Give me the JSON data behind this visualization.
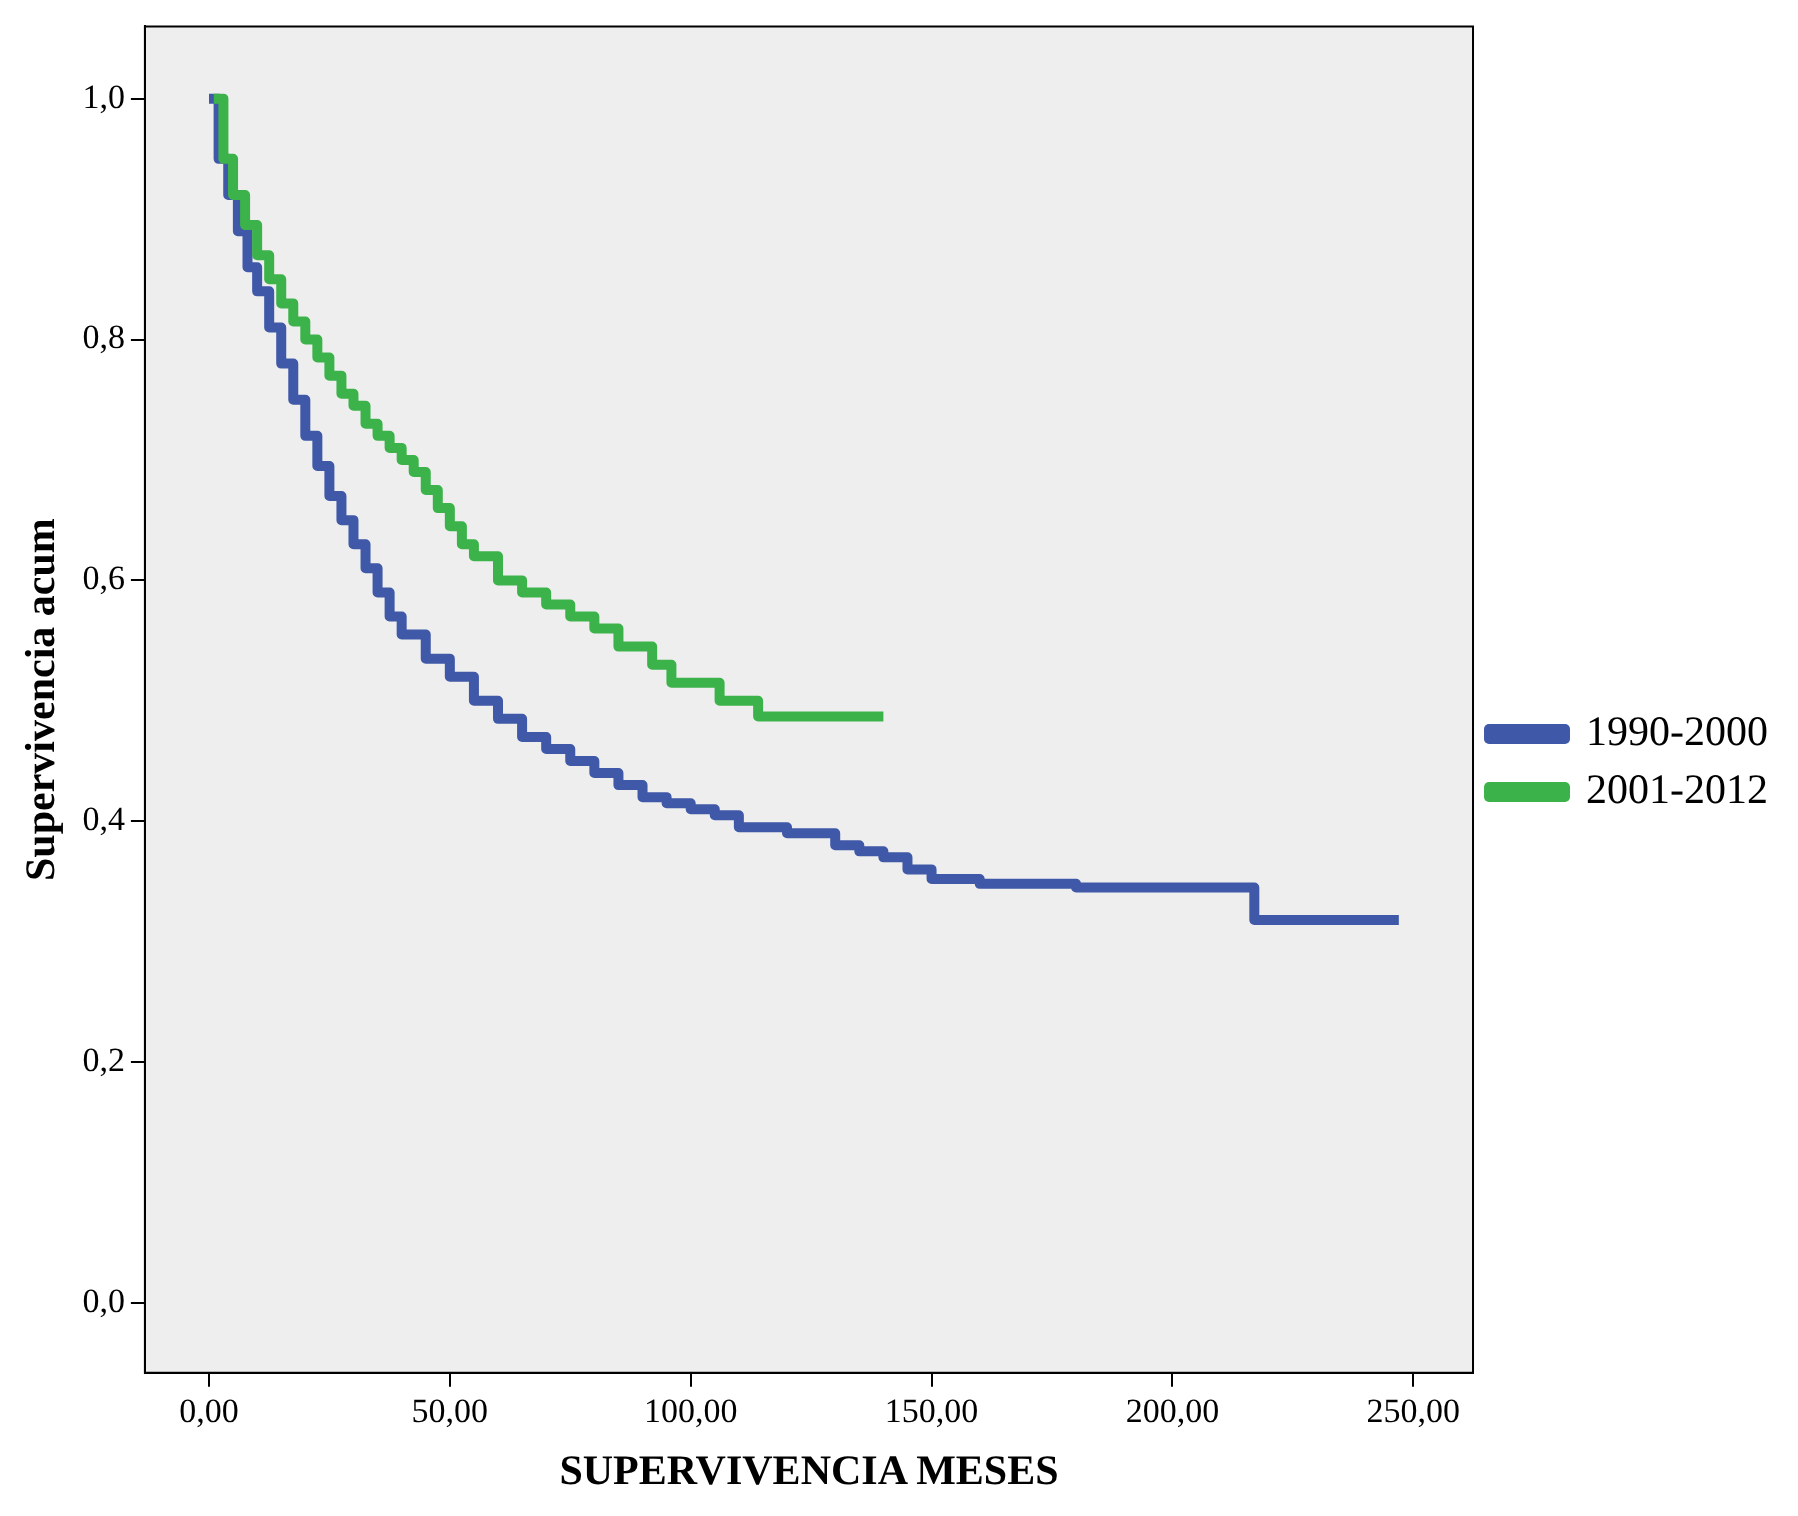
{
  "chart_data": {
    "type": "step",
    "xlabel": "SUPERVIVENCIA MESES",
    "ylabel": "Supervivencia acum",
    "xlim": [
      -13.3,
      262.4
    ],
    "ylim": [
      -0.058,
      1.06
    ],
    "xticks": [
      {
        "value": 0,
        "label": "0,00"
      },
      {
        "value": 50,
        "label": "50,00"
      },
      {
        "value": 100,
        "label": "100,00"
      },
      {
        "value": 150,
        "label": "150,00"
      },
      {
        "value": 200,
        "label": "200,00"
      },
      {
        "value": 250,
        "label": "250,00"
      }
    ],
    "yticks": [
      {
        "value": 0,
        "label": "0,0"
      },
      {
        "value": 0.2,
        "label": "0,2"
      },
      {
        "value": 0.4,
        "label": "0,4"
      },
      {
        "value": 0.6,
        "label": "0,6"
      },
      {
        "value": 0.8,
        "label": "0,8"
      },
      {
        "value": 1,
        "label": "1,0"
      }
    ],
    "grid": false,
    "legend": "right",
    "marker": "none",
    "line_style": "solid",
    "series": [
      {
        "name": "1990-2000",
        "color": "#3f58a8",
        "x": [
          0,
          2,
          4,
          6,
          8,
          10,
          12.5,
          15,
          17.5,
          20,
          22.5,
          25,
          27.5,
          30,
          32.5,
          35,
          37.5,
          40,
          45,
          50,
          55,
          60,
          65,
          70,
          75,
          80,
          85,
          90,
          95,
          100,
          105,
          110,
          120,
          130,
          135,
          140,
          145,
          150,
          160,
          180,
          217,
          247
        ],
        "values": [
          1.0,
          0.95,
          0.92,
          0.89,
          0.86,
          0.84,
          0.81,
          0.78,
          0.75,
          0.72,
          0.695,
          0.67,
          0.65,
          0.63,
          0.61,
          0.59,
          0.57,
          0.555,
          0.535,
          0.52,
          0.5,
          0.485,
          0.47,
          0.46,
          0.45,
          0.44,
          0.43,
          0.42,
          0.415,
          0.41,
          0.405,
          0.395,
          0.39,
          0.38,
          0.375,
          0.37,
          0.36,
          0.352,
          0.348,
          0.345,
          0.318,
          0.318
        ]
      },
      {
        "name": "2001-2012",
        "color": "#3cb34a",
        "x": [
          1,
          3,
          5,
          7.5,
          10,
          12.5,
          15,
          17.5,
          20,
          22.5,
          25,
          27.5,
          30,
          32.5,
          35,
          37.5,
          40,
          42.5,
          45,
          47.5,
          50,
          52.5,
          55,
          60,
          65,
          70,
          75,
          80,
          85,
          92,
          96,
          100,
          106,
          114,
          140
        ],
        "values": [
          1.0,
          0.95,
          0.92,
          0.895,
          0.87,
          0.85,
          0.83,
          0.815,
          0.8,
          0.785,
          0.77,
          0.755,
          0.745,
          0.73,
          0.72,
          0.71,
          0.7,
          0.69,
          0.675,
          0.66,
          0.645,
          0.63,
          0.62,
          0.6,
          0.59,
          0.58,
          0.57,
          0.56,
          0.545,
          0.53,
          0.515,
          0.515,
          0.5,
          0.487,
          0.487
        ]
      }
    ]
  }
}
